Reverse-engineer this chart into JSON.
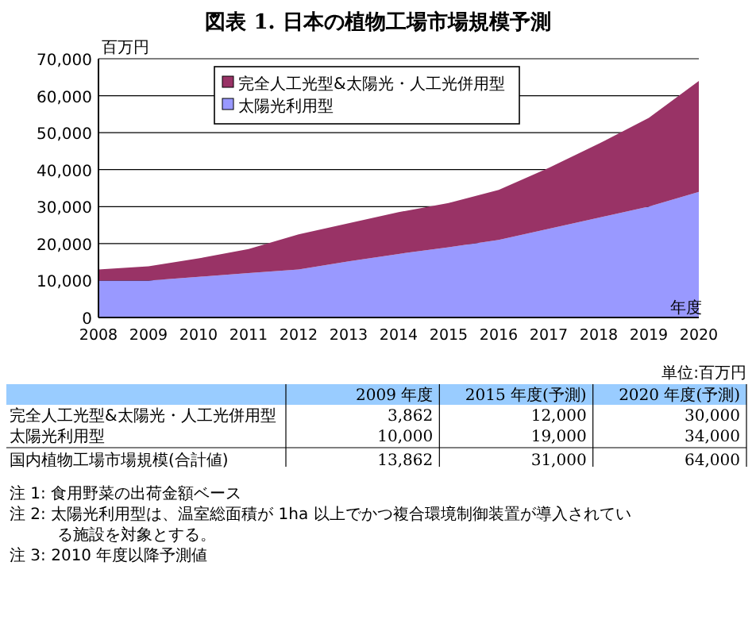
{
  "chart_data": {
    "type": "area",
    "title": "図表 1.  日本の植物工場市場規模予測",
    "xlabel": "年度",
    "ylabel": "百万円",
    "categories": [
      "2008",
      "2009",
      "2010",
      "2011",
      "2012",
      "2013",
      "2014",
      "2015",
      "2016",
      "2017",
      "2018",
      "2019",
      "2020"
    ],
    "stacked": true,
    "series": [
      {
        "name": "太陽光利用型",
        "color": "#9999ff",
        "values": [
          10000,
          10000,
          11000,
          12000,
          13000,
          15200,
          17200,
          19000,
          21000,
          24000,
          27000,
          30000,
          34000
        ]
      },
      {
        "name": "完全人工光型&太陽光・人工光併用型",
        "color": "#993366",
        "values": [
          3000,
          3862,
          5000,
          6500,
          9500,
          10300,
          11300,
          12000,
          13500,
          16500,
          20000,
          24000,
          30000
        ]
      }
    ],
    "ylim": [
      0,
      70000
    ],
    "yticks": [
      {
        "value": 0,
        "label": "0"
      },
      {
        "value": 10000,
        "label": "10,000"
      },
      {
        "value": 20000,
        "label": "20,000"
      },
      {
        "value": 30000,
        "label": "30,000"
      },
      {
        "value": 40000,
        "label": "40,000"
      },
      {
        "value": 50000,
        "label": "50,000"
      },
      {
        "value": 60000,
        "label": "60,000"
      },
      {
        "value": 70000,
        "label": "70,000"
      }
    ],
    "grid": "y",
    "legend": "top",
    "annotations": [
      "単位:百万円",
      "2009 年度",
      "2015 年度(予測)",
      "2020 年度(予測)",
      "完全人工光型&太陽光・人工光併用型",
      "3,862",
      "12,000",
      "30,000",
      "太陽光利用型",
      "10,000",
      "19,000",
      "34,000",
      "国内植物工場市場規模(合計値)",
      "13,862",
      "31,000",
      "64,000",
      "注 1: 食用野菜の出荷金額ベース",
      "注 2: 太陽光利用型は、温室総面積が 1ha 以上でかつ複合環境制御装置が導入されている施設を対象とする。",
      "注 3: 2010 年度以降予測値"
    ]
  }
}
